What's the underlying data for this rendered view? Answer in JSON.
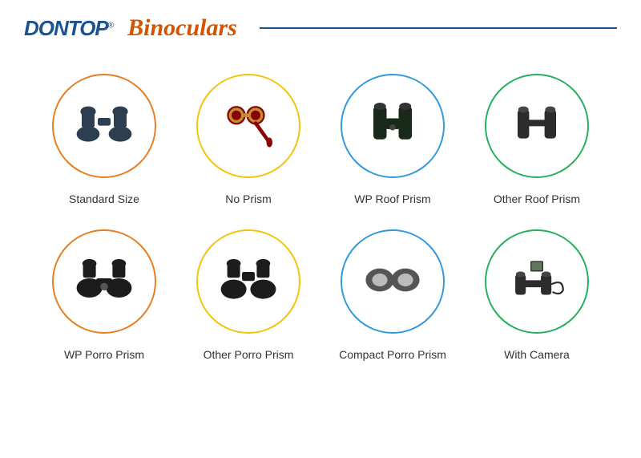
{
  "header": {
    "logo": "DONTOP",
    "logo_reg": "®",
    "title": "Binoculars",
    "logo_color": "#1a5490",
    "title_color": "#d35400",
    "rule_color": "#1a5490"
  },
  "grid": {
    "background": "#ffffff",
    "label_color": "#333333",
    "label_fontsize": 14,
    "circle_size": 130,
    "circle_border_width": 2,
    "items": [
      {
        "label": "Standard Size",
        "circle_color": "#e67e22",
        "icon": "porro-standard",
        "icon_color": "#2c3e50"
      },
      {
        "label": "No Prism",
        "circle_color": "#f1c40f",
        "icon": "opera-glasses",
        "icon_color": "#8b0000"
      },
      {
        "label": "WP Roof Prism",
        "circle_color": "#3498db",
        "icon": "roof-wp",
        "icon_color": "#1a2a1a"
      },
      {
        "label": "Other Roof Prism",
        "circle_color": "#27ae60",
        "icon": "roof-compact",
        "icon_color": "#2c2c2c"
      },
      {
        "label": "WP Porro Prism",
        "circle_color": "#e67e22",
        "icon": "porro-marine",
        "icon_color": "#1c1c1c"
      },
      {
        "label": "Other Porro Prism",
        "circle_color": "#f1c40f",
        "icon": "porro-other",
        "icon_color": "#1c1c1c"
      },
      {
        "label": "Compact Porro Prism",
        "circle_color": "#3498db",
        "icon": "porro-compact",
        "icon_color": "#555555"
      },
      {
        "label": "With Camera",
        "circle_color": "#27ae60",
        "icon": "bino-camera",
        "icon_color": "#2c2c2c"
      }
    ]
  }
}
